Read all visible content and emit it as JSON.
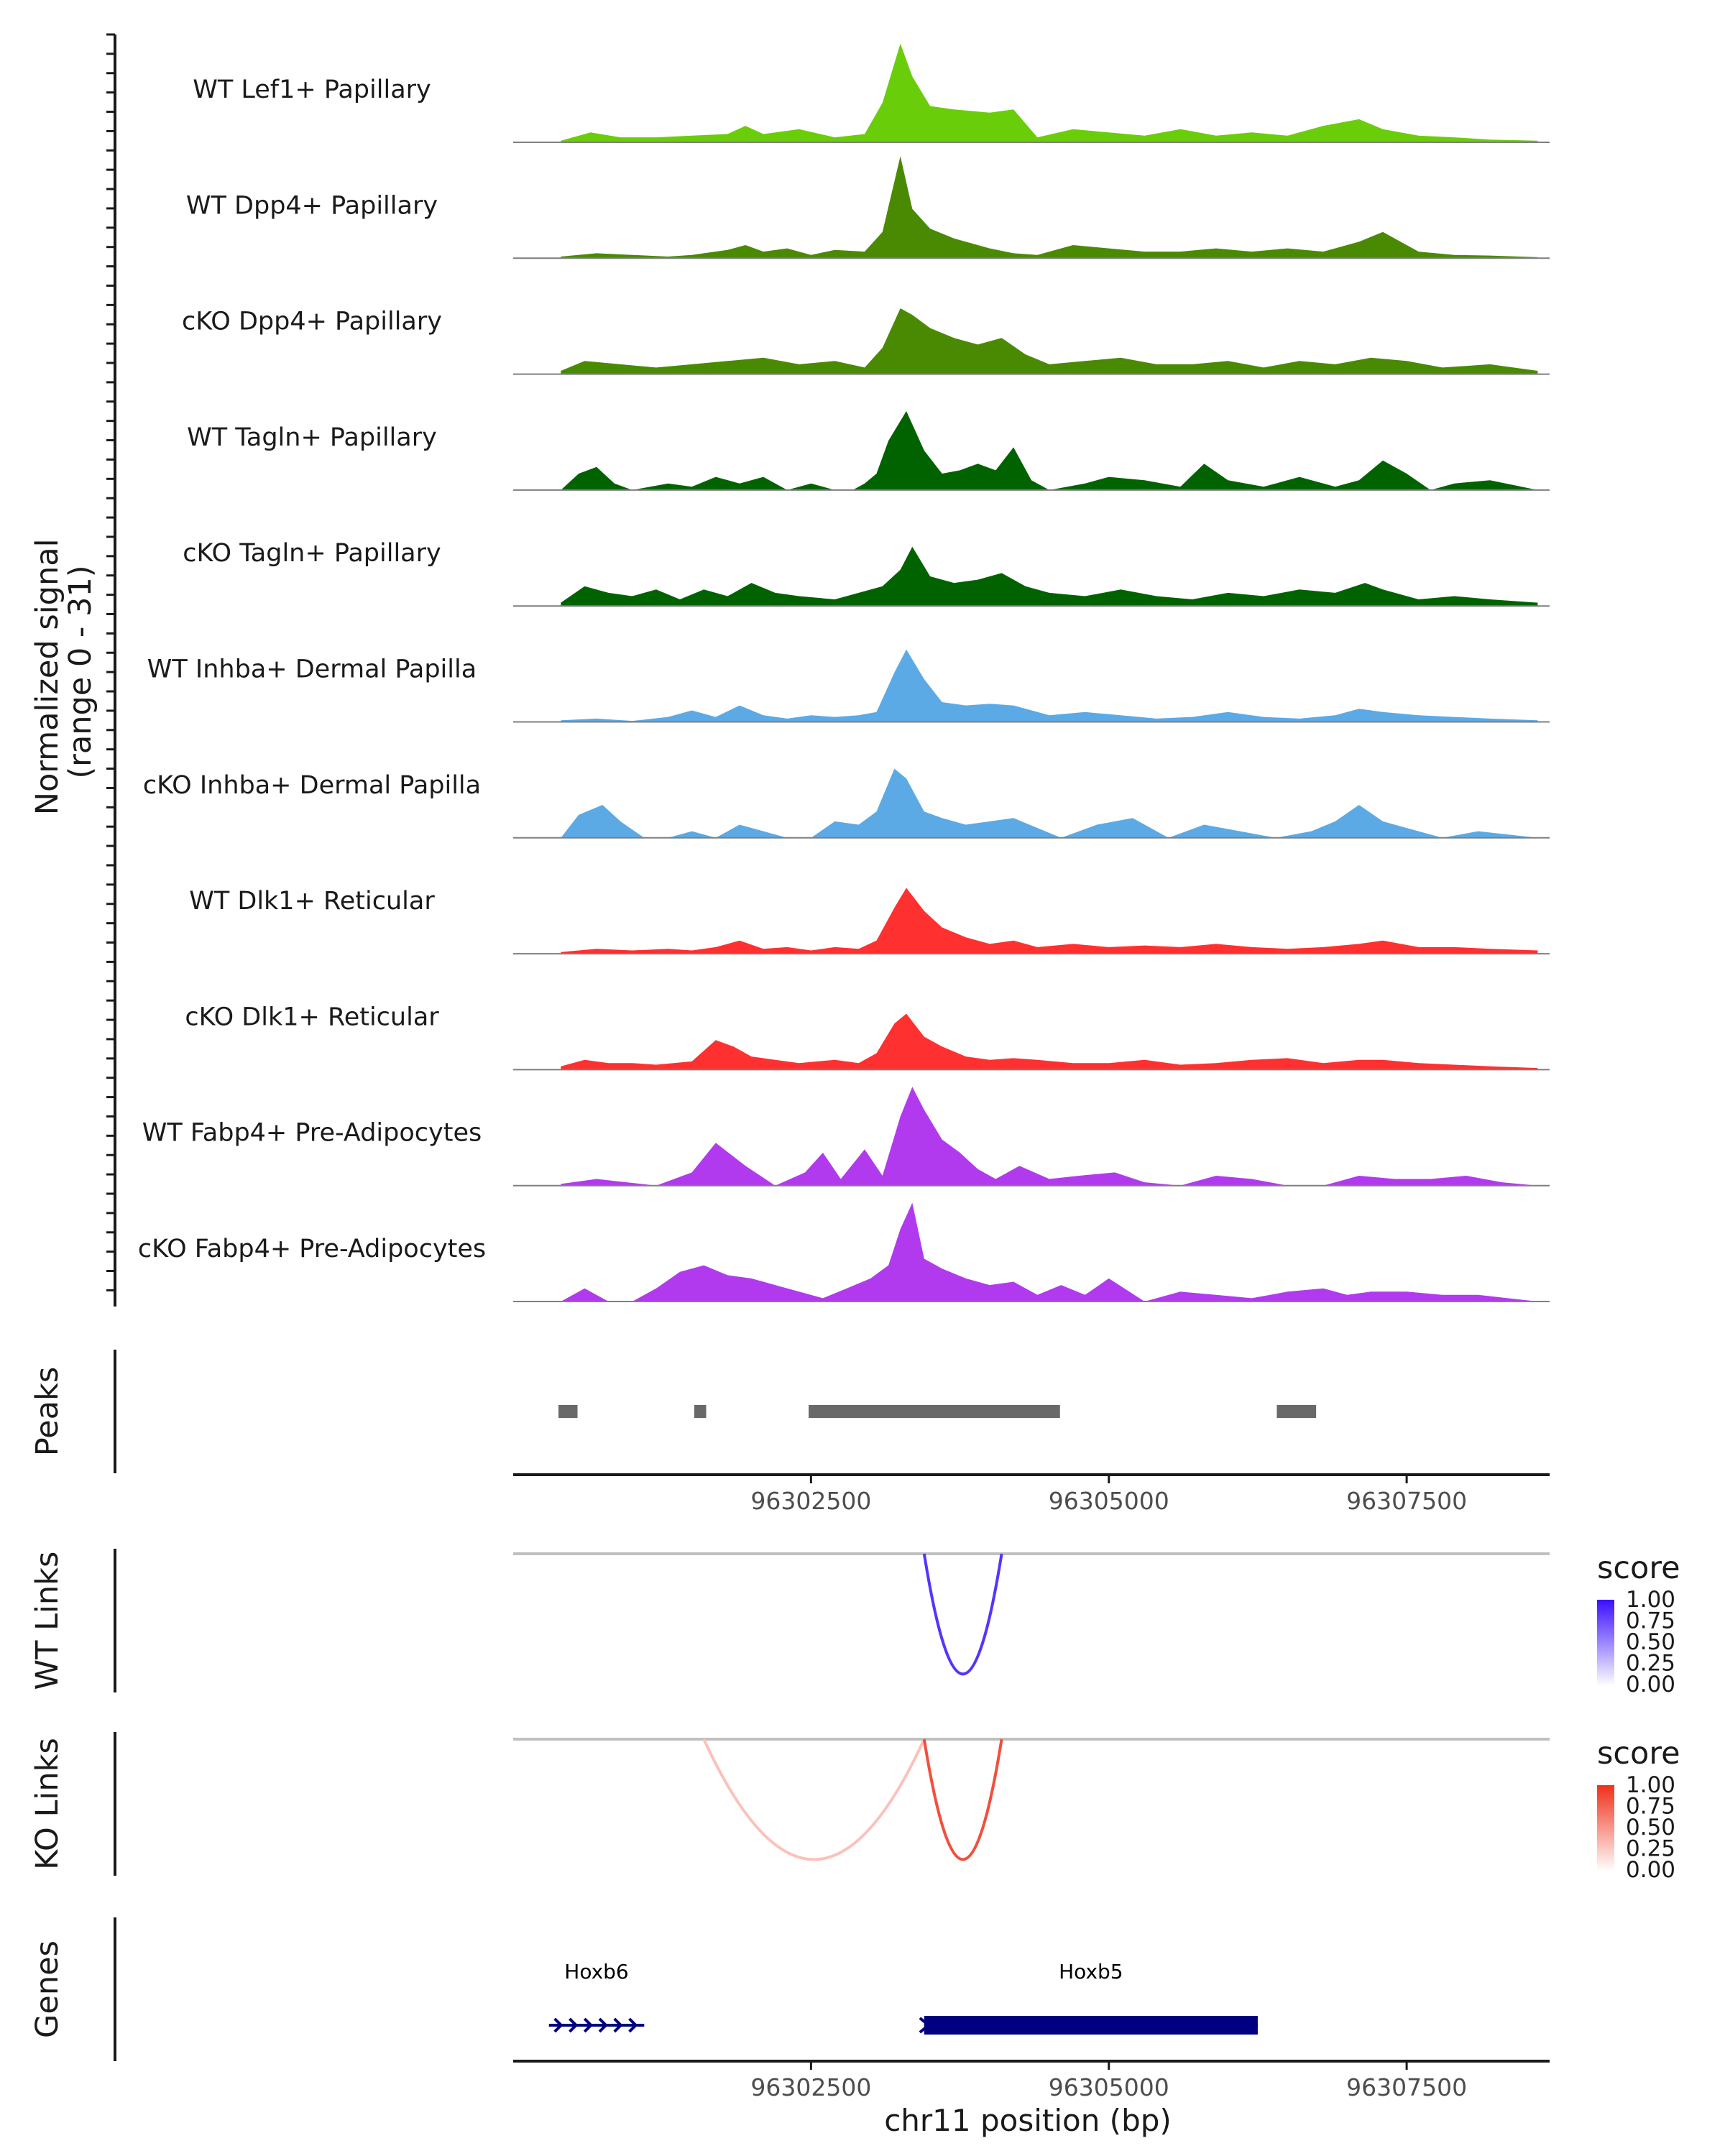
{
  "chart_data": {
    "type": "area",
    "region": "chr11",
    "xlim": [
      96300000,
      96308700
    ],
    "xticks": [
      96302500,
      96305000,
      96307500
    ],
    "xtick_labels": [
      "96302500",
      "96305000",
      "96307500"
    ],
    "xlabel": "chr11 position (bp)",
    "ylabel_line1": "Normalized signal",
    "ylabel_line2": "(range 0 - 31)",
    "ylim": [
      0,
      31
    ],
    "tracks": [
      {
        "name": "WT Lef1+ Papillary",
        "color": "#6ACD0A",
        "x": [
          96300400,
          96300650,
          96300900,
          96301200,
          96301500,
          96301800,
          96301950,
          96302100,
          96302400,
          96302700,
          96302950,
          96303100,
          96303250,
          96303350,
          96303500,
          96303700,
          96304000,
          96304200,
          96304400,
          96304700,
          96305000,
          96305300,
          96305600,
          96305900,
          96306200,
          96306500,
          96306800,
          96307100,
          96307300,
          96307600,
          96307900,
          96308200,
          96308600
        ],
        "values": [
          0.5,
          3,
          1.5,
          1.5,
          2,
          2.5,
          5,
          2.5,
          4,
          1.5,
          2.5,
          12,
          30,
          20,
          11,
          10,
          9,
          10,
          1.5,
          4,
          3,
          2,
          4,
          2,
          3,
          2,
          5,
          7,
          4,
          2,
          1.5,
          0.8,
          0.5
        ]
      },
      {
        "name": "WT Dpp4+ Papillary",
        "color": "#4A8A02",
        "x": [
          96300400,
          96300700,
          96301000,
          96301300,
          96301500,
          96301800,
          96301950,
          96302100,
          96302300,
          96302500,
          96302700,
          96302950,
          96303100,
          96303250,
          96303350,
          96303500,
          96303700,
          96304000,
          96304200,
          96304400,
          96304700,
          96305000,
          96305300,
          96305600,
          96305900,
          96306200,
          96306500,
          96306800,
          96307100,
          96307300,
          96307600,
          96307900,
          96308200,
          96308600
        ],
        "values": [
          0.5,
          1.5,
          1,
          0.5,
          1,
          2.5,
          4,
          2,
          3,
          1,
          2.5,
          2,
          8,
          31,
          15,
          9,
          6,
          3,
          1.5,
          1,
          4,
          3,
          2,
          2,
          3,
          2,
          3,
          2,
          5,
          8,
          2,
          1,
          0.8,
          0.3
        ]
      },
      {
        "name": "cKO Dpp4+ Papillary",
        "color": "#4A8A02",
        "x": [
          96300400,
          96300600,
          96300900,
          96301200,
          96301500,
          96301800,
          96302100,
          96302400,
          96302700,
          96302950,
          96303100,
          96303250,
          96303350,
          96303500,
          96303700,
          96303900,
          96304100,
          96304300,
          96304500,
          96304800,
          96305100,
          96305400,
          96305700,
          96306000,
          96306300,
          96306600,
          96306900,
          96307200,
          96307500,
          96307800,
          96308200,
          96308600
        ],
        "values": [
          1,
          4,
          3,
          2,
          3,
          4,
          5,
          3,
          4,
          2,
          8,
          20,
          18,
          14,
          11,
          9,
          11,
          6,
          3,
          4,
          5,
          3,
          3,
          4,
          2,
          4,
          3,
          5,
          4,
          2,
          3,
          1
        ]
      },
      {
        "name": "WT Tagln+ Papillary",
        "color": "#006300",
        "x": [
          96300400,
          96300550,
          96300700,
          96300850,
          96301000,
          96301300,
          96301500,
          96301700,
          96301900,
          96302100,
          96302300,
          96302500,
          96302700,
          96302850,
          96302950,
          96303050,
          96303150,
          96303300,
          96303450,
          96303600,
          96303750,
          96303900,
          96304050,
          96304200,
          96304350,
          96304500,
          96304800,
          96305000,
          96305300,
          96305600,
          96305800,
          96306000,
          96306300,
          96306600,
          96306900,
          96307100,
          96307300,
          96307500,
          96307700,
          96307900,
          96308200,
          96308600
        ],
        "values": [
          0,
          5,
          7,
          2,
          0,
          2,
          1,
          4,
          2,
          4,
          0,
          2,
          0,
          0,
          2,
          5,
          15,
          24,
          12,
          5,
          6,
          8,
          6,
          13,
          3,
          0,
          2,
          4,
          3,
          1,
          8,
          3,
          1,
          4,
          1,
          3,
          9,
          5,
          0,
          2,
          3,
          0
        ]
      },
      {
        "name": "cKO Tagln+ Papillary",
        "color": "#006300",
        "x": [
          96300400,
          96300600,
          96300800,
          96301000,
          96301200,
          96301400,
          96301600,
          96301800,
          96302000,
          96302200,
          96302400,
          96302700,
          96302900,
          96303100,
          96303250,
          96303350,
          96303500,
          96303700,
          96303900,
          96304100,
          96304300,
          96304500,
          96304800,
          96305100,
          96305400,
          96305700,
          96306000,
          96306300,
          96306600,
          96306900,
          96307150,
          96307300,
          96307600,
          96307900,
          96308200,
          96308600
        ],
        "values": [
          1,
          6,
          4,
          3,
          5,
          2,
          5,
          3,
          7,
          4,
          3,
          2,
          4,
          6,
          11,
          18,
          9,
          7,
          8,
          10,
          6,
          4,
          3,
          5,
          3,
          2,
          4,
          3,
          5,
          4,
          7,
          5,
          2,
          3,
          2,
          1
        ]
      },
      {
        "name": "WT Inhba+ Dermal Papilla",
        "color": "#5BAAE6",
        "x": [
          96300400,
          96300700,
          96301000,
          96301300,
          96301500,
          96301700,
          96301900,
          96302100,
          96302300,
          96302500,
          96302700,
          96302900,
          96303050,
          96303200,
          96303300,
          96303450,
          96303600,
          96303800,
          96304000,
          96304200,
          96304500,
          96304800,
          96305100,
          96305400,
          96305700,
          96306000,
          96306300,
          96306600,
          96306900,
          96307100,
          96307300,
          96307600,
          96307900,
          96308200,
          96308600
        ],
        "values": [
          0.5,
          1,
          0.3,
          1.5,
          3.5,
          1.5,
          5,
          2,
          1,
          2,
          1.5,
          2,
          3,
          15,
          22,
          13,
          6,
          5,
          5.5,
          5,
          2,
          3,
          2,
          1,
          1.5,
          3,
          1.5,
          1,
          2,
          4,
          3,
          2,
          1.5,
          1,
          0.5
        ]
      },
      {
        "name": "cKO Inhba+ Dermal Papilla",
        "color": "#5BAAE6",
        "x": [
          96300400,
          96300550,
          96300750,
          96300900,
          96301100,
          96301300,
          96301500,
          96301700,
          96301900,
          96302100,
          96302300,
          96302500,
          96302700,
          96302900,
          96303050,
          96303200,
          96303300,
          96303450,
          96303600,
          96303800,
          96304000,
          96304200,
          96304400,
          96304600,
          96304900,
          96305200,
          96305500,
          96305800,
          96306100,
          96306400,
          96306700,
          96306900,
          96307100,
          96307300,
          96307500,
          96307800,
          96308100,
          96308600
        ],
        "values": [
          0,
          7,
          10,
          5,
          0,
          0,
          2,
          0,
          4,
          2,
          0,
          0,
          5,
          4,
          8,
          21,
          18,
          8,
          6,
          4,
          5,
          6,
          3,
          0,
          4,
          6,
          0,
          4,
          2,
          0,
          2,
          5,
          10,
          5,
          3,
          0,
          2,
          0
        ]
      },
      {
        "name": "WT Dlk1+ Reticular",
        "color": "#FF3030",
        "x": [
          96300400,
          96300700,
          96301000,
          96301300,
          96301500,
          96301700,
          96301900,
          96302100,
          96302300,
          96302500,
          96302700,
          96302900,
          96303050,
          96303200,
          96303300,
          96303450,
          96303600,
          96303800,
          96304000,
          96304200,
          96304400,
          96304700,
          96305000,
          96305300,
          96305600,
          96305900,
          96306200,
          96306500,
          96306800,
          96307100,
          96307300,
          96307600,
          96307900,
          96308200,
          96308600
        ],
        "values": [
          0.5,
          1.5,
          1,
          1.5,
          1,
          2,
          4,
          1.5,
          2,
          1,
          2,
          1.5,
          4,
          14,
          20,
          13,
          8,
          5,
          3,
          4,
          2,
          3,
          2,
          2.5,
          2,
          3,
          2,
          1.5,
          2,
          3,
          4,
          2,
          2,
          1.5,
          1
        ]
      },
      {
        "name": "cKO Dlk1+ Reticular",
        "color": "#FF3030",
        "x": [
          96300400,
          96300600,
          96300800,
          96301000,
          96301200,
          96301500,
          96301700,
          96301850,
          96302000,
          96302200,
          96302400,
          96302700,
          96302900,
          96303050,
          96303200,
          96303300,
          96303450,
          96303600,
          96303800,
          96304000,
          96304200,
          96304400,
          96304700,
          96305000,
          96305300,
          96305600,
          96305900,
          96306200,
          96306500,
          96306800,
          96307100,
          96307300,
          96307600,
          96307900,
          96308200,
          96308600
        ],
        "values": [
          1,
          3,
          2,
          2,
          1.5,
          2.5,
          9,
          7,
          4,
          3,
          2,
          3,
          2,
          5,
          14,
          17,
          10,
          7,
          4,
          3,
          3.5,
          3,
          2,
          2,
          3,
          1.5,
          2,
          3,
          3.5,
          2,
          3,
          3,
          2,
          1.5,
          1,
          0.5
        ]
      },
      {
        "name": "WT Fabp4+ Pre-Adipocytes",
        "color": "#B23AEE",
        "x": [
          96300400,
          96300700,
          96300950,
          96301200,
          96301500,
          96301700,
          96301950,
          96302200,
          96302450,
          96302600,
          96302750,
          96302950,
          96303100,
          96303250,
          96303350,
          96303450,
          96303600,
          96303750,
          96303900,
          96304050,
          96304250,
          96304500,
          96304750,
          96305050,
          96305300,
          96305600,
          96305900,
          96306200,
          96306500,
          96306800,
          96307100,
          96307400,
          96307700,
          96308000,
          96308300,
          96308600
        ],
        "values": [
          0.5,
          2,
          1,
          0,
          4,
          13,
          6,
          0,
          4,
          10,
          2,
          11,
          3,
          21,
          30,
          23,
          14,
          10,
          5,
          2,
          6,
          2,
          3,
          4,
          1,
          0,
          3,
          2,
          0,
          0,
          3,
          2,
          2,
          3,
          1,
          0
        ]
      },
      {
        "name": "cKO Fabp4+ Pre-Adipocytes",
        "color": "#B23AEE",
        "x": [
          96300400,
          96300600,
          96300800,
          96301000,
          96301200,
          96301400,
          96301600,
          96301800,
          96302000,
          96302200,
          96302400,
          96302600,
          96302800,
          96303000,
          96303150,
          96303250,
          96303350,
          96303450,
          96303600,
          96303800,
          96304000,
          96304200,
          96304400,
          96304600,
          96304800,
          96305000,
          96305300,
          96305600,
          96305900,
          96306200,
          96306500,
          96306800,
          96307000,
          96307200,
          96307500,
          96307800,
          96308100,
          96308600
        ],
        "values": [
          0,
          4,
          0,
          0,
          4,
          9,
          11,
          8,
          7,
          5,
          3,
          1,
          4,
          7,
          11,
          22,
          30,
          13,
          10,
          7,
          5,
          6,
          2,
          5,
          2,
          7,
          0,
          3,
          2,
          1,
          3,
          4,
          2,
          3,
          3,
          2,
          2,
          0
        ]
      }
    ],
    "peaks": {
      "label": "Peaks",
      "color": "#696969",
      "intervals": [
        [
          96300380,
          96300540
        ],
        [
          96301520,
          96301620
        ],
        [
          96302480,
          96304590
        ],
        [
          96306410,
          96306740
        ]
      ]
    },
    "wt_links": {
      "label": "WT Links",
      "legend_title": "score",
      "legend_ticks": [
        "1.00",
        "0.75",
        "0.50",
        "0.25",
        "0.00"
      ],
      "color_high": "#3B0FFF",
      "color_low": "#FFFFFF",
      "links": [
        {
          "start": 96303450,
          "end": 96304100,
          "score": 0.85,
          "depth": 0.93
        }
      ]
    },
    "ko_links": {
      "label": "KO Links",
      "legend_title": "score",
      "legend_ticks": [
        "1.00",
        "0.75",
        "0.50",
        "0.25",
        "0.00"
      ],
      "color_high": "#F0301A",
      "color_low": "#FFFFFF",
      "links": [
        {
          "start": 96301600,
          "end": 96303450,
          "score": 0.3,
          "depth": 0.93
        },
        {
          "start": 96303450,
          "end": 96304100,
          "score": 0.85,
          "depth": 0.93
        }
      ]
    },
    "genes": {
      "label": "Genes",
      "color": "#000080",
      "items": [
        {
          "name": "Hoxb6",
          "start": 96300300,
          "end": 96301100,
          "style": "intron"
        },
        {
          "name": "Hoxb5",
          "start": 96303450,
          "end": 96306250,
          "style": "exon"
        }
      ]
    }
  }
}
